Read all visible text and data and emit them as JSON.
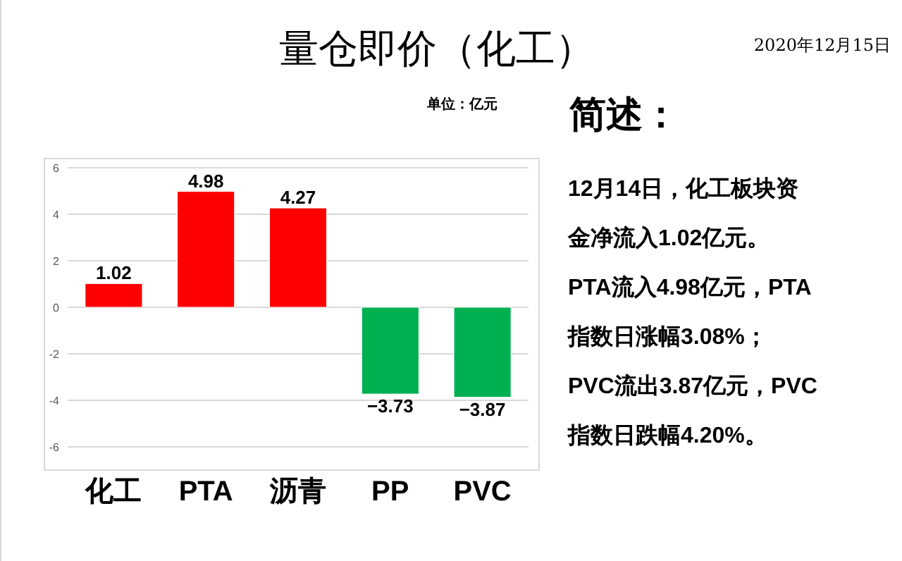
{
  "chart_data": {
    "type": "bar",
    "title": "量仓即价（化工）",
    "subtitle": "单位：亿元",
    "categories": [
      "化工",
      "PTA",
      "沥青",
      "PP",
      "PVC"
    ],
    "values": [
      1.02,
      4.98,
      4.27,
      -3.73,
      -3.87
    ],
    "colors": [
      "#ff0000",
      "#ff0000",
      "#ff0000",
      "#00b050",
      "#00b050"
    ],
    "ylim": [
      -6,
      6
    ],
    "yticks": [
      -6,
      -4,
      -2,
      0,
      2,
      4,
      6
    ],
    "grid": "y",
    "data_labels": true,
    "annotations": [
      "2020年12月15日",
      "简述：",
      "12月14日，化工板块资",
      "金净流入1.02亿元。",
      "PTA流入4.98亿元，PTA",
      "指数日涨幅3.08%；",
      "PVC流出3.87亿元，PVC",
      "指数日跌幅4.20%。"
    ]
  }
}
